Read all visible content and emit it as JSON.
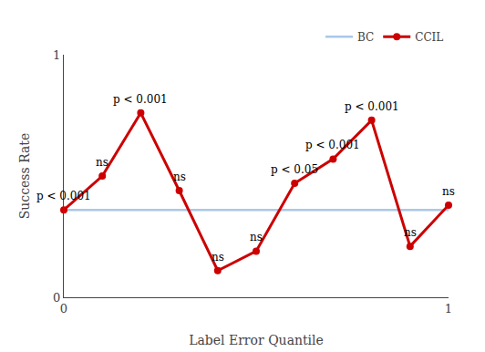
{
  "chart_data": {
    "type": "line",
    "x_label": "Label Error Quantile",
    "y_label": "Success Rate",
    "x": [
      0.0,
      0.1,
      0.2,
      0.3,
      0.4,
      0.5,
      0.6,
      0.7,
      0.8,
      0.9,
      1.0
    ],
    "hlines": [
      {
        "name": "BC",
        "color": "#aac8e8",
        "value": 0.36
      }
    ],
    "series": [
      {
        "name": "CCIL",
        "color": "#cc0000",
        "marker": "circle",
        "values": [
          0.36,
          0.5,
          0.76,
          0.44,
          0.11,
          0.19,
          0.47,
          0.57,
          0.73,
          0.21,
          0.38
        ]
      }
    ],
    "annotations": [
      {
        "x": 0.0,
        "y": 0.36,
        "text": "p < 0.001"
      },
      {
        "x": 0.1,
        "y": 0.5,
        "text": "ns"
      },
      {
        "x": 0.2,
        "y": 0.76,
        "text": "p < 0.001"
      },
      {
        "x": 0.3,
        "y": 0.44,
        "text": "ns"
      },
      {
        "x": 0.4,
        "y": 0.11,
        "text": "ns"
      },
      {
        "x": 0.5,
        "y": 0.19,
        "text": "ns"
      },
      {
        "x": 0.6,
        "y": 0.47,
        "text": "p < 0.05"
      },
      {
        "x": 0.7,
        "y": 0.57,
        "text": "p < 0.001"
      },
      {
        "x": 0.8,
        "y": 0.73,
        "text": "p < 0.001"
      },
      {
        "x": 0.9,
        "y": 0.21,
        "text": "ns"
      },
      {
        "x": 1.0,
        "y": 0.38,
        "text": "ns"
      }
    ],
    "xlim": [
      0.0,
      1.0
    ],
    "ylim": [
      0.0,
      1.0
    ],
    "xticks": [
      0,
      1
    ],
    "yticks": [
      0,
      1
    ],
    "grid": false,
    "legend": "upper right"
  }
}
